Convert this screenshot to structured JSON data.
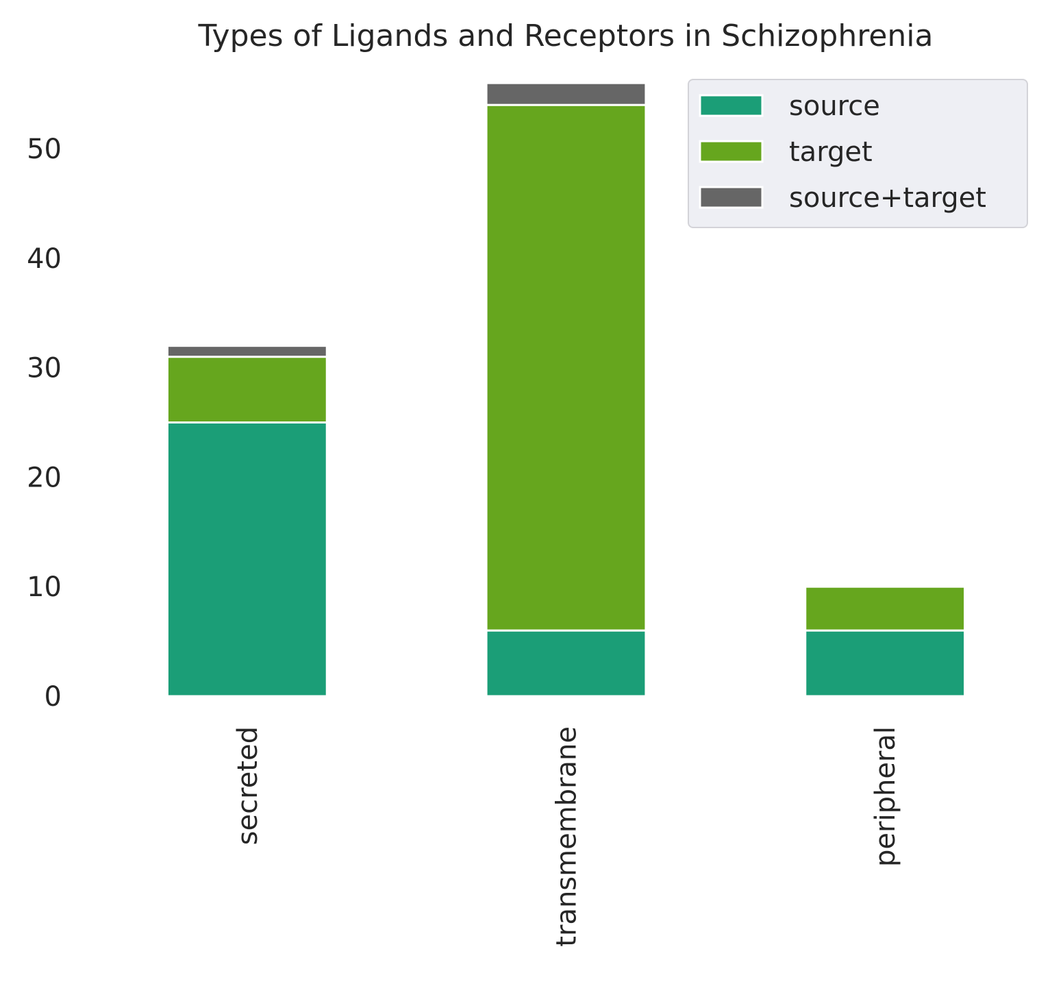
{
  "chart_data": {
    "type": "bar",
    "stacked": true,
    "title": "Types of Ligands and Receptors in Schizophrenia",
    "xlabel": "",
    "ylabel": "",
    "categories": [
      "secreted",
      "transmembrane",
      "peripheral"
    ],
    "series": [
      {
        "name": "source",
        "color": "#1b9e77",
        "values": [
          25,
          6,
          6
        ]
      },
      {
        "name": "target",
        "color": "#66a61e",
        "values": [
          6,
          48,
          4
        ]
      },
      {
        "name": "source+target",
        "color": "#666666",
        "values": [
          1,
          2,
          0
        ]
      }
    ],
    "yticks": [
      "0",
      "10",
      "20",
      "30",
      "40",
      "50"
    ],
    "ylim": [
      0,
      56.7
    ],
    "grid": false,
    "legend_position": "top-right"
  }
}
